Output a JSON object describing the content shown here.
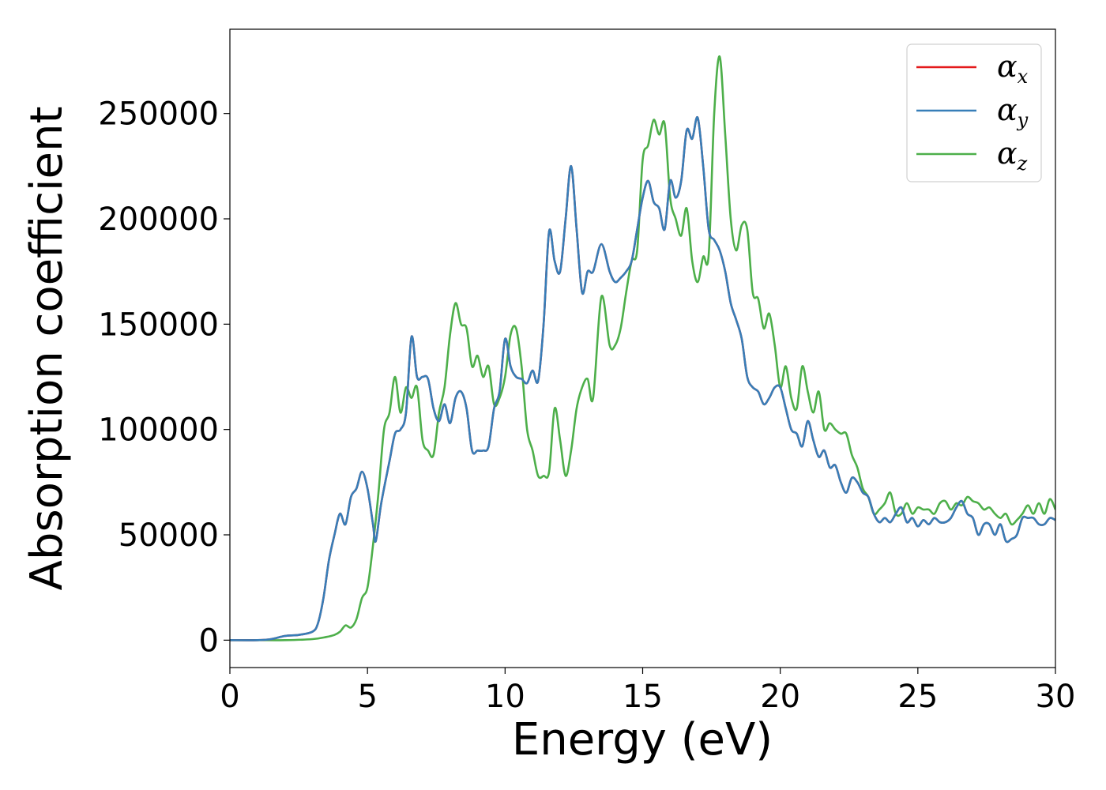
{
  "chart_data": {
    "type": "line",
    "title": "",
    "xlabel": "Energy (eV)",
    "ylabel": "Absorption coefficient",
    "xlim": [
      0,
      30
    ],
    "ylim": [
      -13000,
      290000
    ],
    "xticks": [
      0,
      5,
      10,
      15,
      20,
      25,
      30
    ],
    "yticks": [
      0,
      50000,
      100000,
      150000,
      200000,
      250000
    ],
    "grid": false,
    "legend_position": "top-right",
    "series": [
      {
        "name": "α",
        "subscript": "x",
        "color": "#e41a1c",
        "x": [
          0,
          1,
          1.5,
          2,
          2.5,
          3,
          3.2,
          3.4,
          3.6,
          3.8,
          4.0,
          4.2,
          4.4,
          4.6,
          4.8,
          5.0,
          5.2,
          5.3,
          5.5,
          5.8,
          6.0,
          6.2,
          6.4,
          6.6,
          6.8,
          7.0,
          7.2,
          7.4,
          7.6,
          7.8,
          8.0,
          8.2,
          8.4,
          8.6,
          8.8,
          9.0,
          9.2,
          9.4,
          9.6,
          9.8,
          10.0,
          10.2,
          10.4,
          10.6,
          10.8,
          11.0,
          11.2,
          11.4,
          11.6,
          11.8,
          12.0,
          12.2,
          12.4,
          12.6,
          12.8,
          13.0,
          13.2,
          13.5,
          13.8,
          14.0,
          14.2,
          14.4,
          14.6,
          14.8,
          15.0,
          15.2,
          15.4,
          15.6,
          15.8,
          16.0,
          16.2,
          16.4,
          16.6,
          16.8,
          17.0,
          17.2,
          17.4,
          17.6,
          17.8,
          18.0,
          18.2,
          18.4,
          18.6,
          18.8,
          19.0,
          19.2,
          19.4,
          19.6,
          19.8,
          20.0,
          20.2,
          20.4,
          20.6,
          20.8,
          21.0,
          21.2,
          21.4,
          21.6,
          21.8,
          22.0,
          22.2,
          22.4,
          22.6,
          22.8,
          23.0,
          23.2,
          23.4,
          23.6,
          23.8,
          24.0,
          24.2,
          24.4,
          24.6,
          24.8,
          25.0,
          25.2,
          25.4,
          25.6,
          25.8,
          26.0,
          26.2,
          26.4,
          26.6,
          26.8,
          27.0,
          27.2,
          27.4,
          27.6,
          27.8,
          28.0,
          28.2,
          28.4,
          28.6,
          28.8,
          29.0,
          29.2,
          29.4,
          29.6,
          29.8,
          30.0
        ],
        "y": [
          0,
          0,
          500,
          2000,
          2500,
          4000,
          8000,
          20000,
          38000,
          50000,
          60000,
          55000,
          68000,
          72000,
          80000,
          72000,
          55000,
          47000,
          65000,
          85000,
          98000,
          100000,
          108000,
          144000,
          125000,
          125000,
          124000,
          110000,
          104000,
          112000,
          103000,
          115000,
          118000,
          110000,
          90000,
          90000,
          90000,
          92000,
          110000,
          118000,
          143000,
          130000,
          125000,
          124000,
          122000,
          128000,
          123000,
          150000,
          194000,
          180000,
          175000,
          200000,
          225000,
          195000,
          165000,
          175000,
          175000,
          188000,
          175000,
          170000,
          172000,
          175000,
          180000,
          195000,
          210000,
          218000,
          208000,
          205000,
          195000,
          218000,
          210000,
          218000,
          242000,
          238000,
          248000,
          225000,
          195000,
          190000,
          185000,
          175000,
          160000,
          152000,
          143000,
          125000,
          120000,
          118000,
          112000,
          115000,
          120000,
          120000,
          110000,
          100000,
          98000,
          92000,
          104000,
          95000,
          87000,
          90000,
          82000,
          83000,
          75000,
          70000,
          77000,
          75000,
          70000,
          68000,
          60000,
          56000,
          58000,
          56000,
          60000,
          63000,
          56000,
          58000,
          54000,
          57000,
          55000,
          58000,
          56000,
          56000,
          58000,
          63000,
          66000,
          60000,
          58000,
          50000,
          55000,
          55000,
          50000,
          55000,
          47000,
          48000,
          50000,
          58000,
          58000,
          58000,
          55000,
          55000,
          58000,
          57000
        ]
      },
      {
        "name": "α",
        "subscript": "y",
        "color": "#377eb8",
        "x": [
          0,
          1,
          1.5,
          2,
          2.5,
          3,
          3.2,
          3.4,
          3.6,
          3.8,
          4.0,
          4.2,
          4.4,
          4.6,
          4.8,
          5.0,
          5.2,
          5.3,
          5.5,
          5.8,
          6.0,
          6.2,
          6.4,
          6.6,
          6.8,
          7.0,
          7.2,
          7.4,
          7.6,
          7.8,
          8.0,
          8.2,
          8.4,
          8.6,
          8.8,
          9.0,
          9.2,
          9.4,
          9.6,
          9.8,
          10.0,
          10.2,
          10.4,
          10.6,
          10.8,
          11.0,
          11.2,
          11.4,
          11.6,
          11.8,
          12.0,
          12.2,
          12.4,
          12.6,
          12.8,
          13.0,
          13.2,
          13.5,
          13.8,
          14.0,
          14.2,
          14.4,
          14.6,
          14.8,
          15.0,
          15.2,
          15.4,
          15.6,
          15.8,
          16.0,
          16.2,
          16.4,
          16.6,
          16.8,
          17.0,
          17.2,
          17.4,
          17.6,
          17.8,
          18.0,
          18.2,
          18.4,
          18.6,
          18.8,
          19.0,
          19.2,
          19.4,
          19.6,
          19.8,
          20.0,
          20.2,
          20.4,
          20.6,
          20.8,
          21.0,
          21.2,
          21.4,
          21.6,
          21.8,
          22.0,
          22.2,
          22.4,
          22.6,
          22.8,
          23.0,
          23.2,
          23.4,
          23.6,
          23.8,
          24.0,
          24.2,
          24.4,
          24.6,
          24.8,
          25.0,
          25.2,
          25.4,
          25.6,
          25.8,
          26.0,
          26.2,
          26.4,
          26.6,
          26.8,
          27.0,
          27.2,
          27.4,
          27.6,
          27.8,
          28.0,
          28.2,
          28.4,
          28.6,
          28.8,
          29.0,
          29.2,
          29.4,
          29.6,
          29.8,
          30.0
        ],
        "y": [
          0,
          0,
          500,
          2000,
          2500,
          4000,
          8000,
          20000,
          38000,
          50000,
          60000,
          55000,
          68000,
          72000,
          80000,
          72000,
          55000,
          47000,
          65000,
          85000,
          98000,
          100000,
          108000,
          144000,
          125000,
          125000,
          124000,
          110000,
          104000,
          112000,
          103000,
          115000,
          118000,
          110000,
          90000,
          90000,
          90000,
          92000,
          110000,
          118000,
          143000,
          130000,
          125000,
          124000,
          122000,
          128000,
          123000,
          150000,
          194000,
          180000,
          175000,
          200000,
          225000,
          195000,
          165000,
          175000,
          175000,
          188000,
          175000,
          170000,
          172000,
          175000,
          180000,
          195000,
          210000,
          218000,
          208000,
          205000,
          195000,
          218000,
          210000,
          218000,
          242000,
          238000,
          248000,
          225000,
          195000,
          190000,
          185000,
          175000,
          160000,
          152000,
          143000,
          125000,
          120000,
          118000,
          112000,
          115000,
          120000,
          120000,
          110000,
          100000,
          98000,
          92000,
          104000,
          95000,
          87000,
          90000,
          82000,
          83000,
          75000,
          70000,
          77000,
          75000,
          70000,
          68000,
          60000,
          56000,
          58000,
          56000,
          60000,
          63000,
          56000,
          58000,
          54000,
          57000,
          55000,
          58000,
          56000,
          56000,
          58000,
          63000,
          66000,
          60000,
          58000,
          50000,
          55000,
          55000,
          50000,
          55000,
          47000,
          48000,
          50000,
          58000,
          58000,
          58000,
          55000,
          55000,
          58000,
          57000
        ]
      },
      {
        "name": "α",
        "subscript": "z",
        "color": "#4daf4a",
        "x": [
          0,
          1,
          2,
          3,
          3.5,
          3.8,
          4.0,
          4.2,
          4.4,
          4.6,
          4.8,
          5.0,
          5.2,
          5.4,
          5.6,
          5.8,
          6.0,
          6.2,
          6.4,
          6.6,
          6.8,
          7.0,
          7.2,
          7.4,
          7.6,
          7.8,
          8.0,
          8.2,
          8.4,
          8.6,
          8.8,
          9.0,
          9.2,
          9.4,
          9.6,
          9.8,
          10.0,
          10.2,
          10.4,
          10.6,
          10.8,
          11.0,
          11.2,
          11.4,
          11.6,
          11.8,
          12.0,
          12.2,
          12.4,
          12.6,
          12.8,
          13.0,
          13.2,
          13.5,
          13.8,
          14.0,
          14.2,
          14.4,
          14.6,
          14.8,
          15.0,
          15.2,
          15.4,
          15.6,
          15.8,
          16.0,
          16.2,
          16.4,
          16.6,
          16.8,
          17.0,
          17.2,
          17.4,
          17.6,
          17.8,
          18.0,
          18.2,
          18.4,
          18.6,
          18.8,
          19.0,
          19.2,
          19.4,
          19.6,
          19.8,
          20.0,
          20.2,
          20.4,
          20.6,
          20.8,
          21.0,
          21.2,
          21.4,
          21.6,
          21.8,
          22.0,
          22.2,
          22.4,
          22.6,
          22.8,
          23.0,
          23.2,
          23.4,
          23.6,
          23.8,
          24.0,
          24.2,
          24.4,
          24.6,
          24.8,
          25.0,
          25.2,
          25.4,
          25.6,
          25.8,
          26.0,
          26.2,
          26.4,
          26.6,
          26.8,
          27.0,
          27.2,
          27.4,
          27.6,
          27.8,
          28.0,
          28.2,
          28.4,
          28.6,
          28.8,
          29.0,
          29.2,
          29.4,
          29.6,
          29.8,
          30.0
        ],
        "y": [
          0,
          0,
          0,
          500,
          1500,
          2500,
          4000,
          7000,
          6000,
          10000,
          20000,
          25000,
          45000,
          70000,
          100000,
          108000,
          125000,
          108000,
          120000,
          115000,
          120000,
          95000,
          90000,
          88000,
          108000,
          120000,
          145000,
          160000,
          150000,
          148000,
          130000,
          135000,
          125000,
          130000,
          112000,
          115000,
          125000,
          145000,
          148000,
          130000,
          100000,
          90000,
          78000,
          78000,
          80000,
          110000,
          95000,
          78000,
          90000,
          110000,
          120000,
          124000,
          115000,
          163000,
          140000,
          140000,
          148000,
          165000,
          180000,
          185000,
          228000,
          235000,
          247000,
          240000,
          245000,
          210000,
          200000,
          192000,
          205000,
          180000,
          170000,
          182000,
          183000,
          250000,
          277000,
          240000,
          200000,
          185000,
          197000,
          195000,
          165000,
          162000,
          148000,
          155000,
          140000,
          120000,
          130000,
          115000,
          110000,
          130000,
          118000,
          108000,
          118000,
          100000,
          103000,
          100000,
          98000,
          98000,
          88000,
          82000,
          72000,
          68000,
          60000,
          62000,
          65000,
          70000,
          60000,
          60000,
          65000,
          60000,
          63000,
          62000,
          62000,
          60000,
          65000,
          66000,
          62000,
          65000,
          64000,
          68000,
          66000,
          65000,
          62000,
          63000,
          60000,
          58000,
          60000,
          55000,
          57000,
          60000,
          64000,
          60000,
          65000,
          60000,
          67000,
          62000
        ]
      }
    ]
  }
}
